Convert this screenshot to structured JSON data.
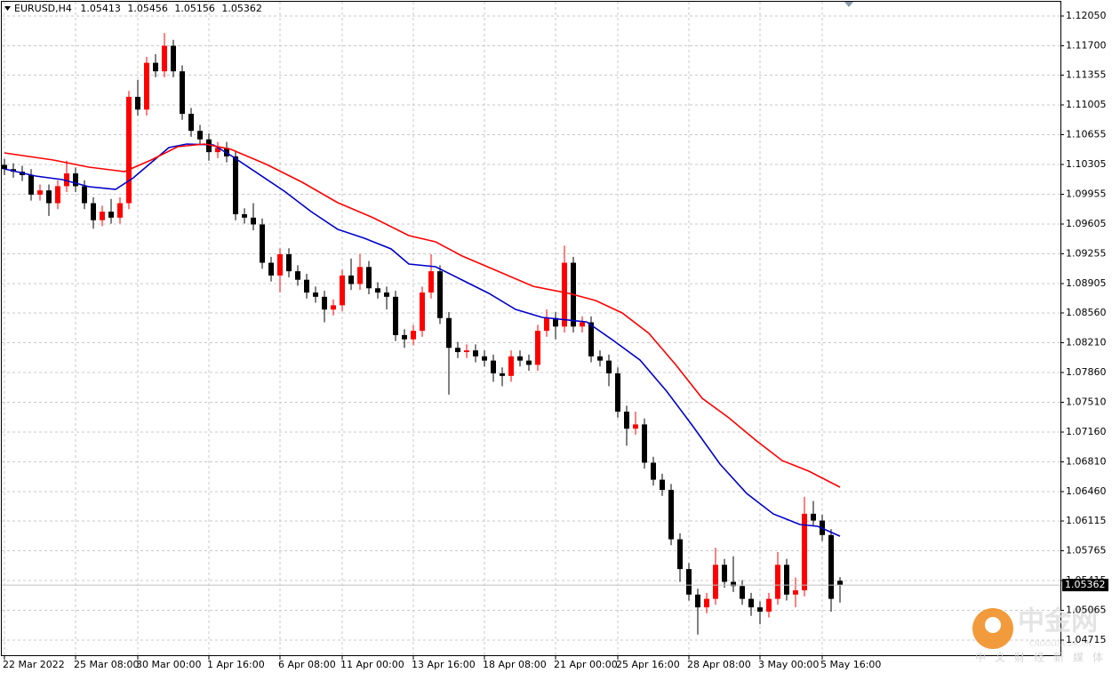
{
  "chart_data": {
    "type": "candlestick",
    "symbol": "EURUSD,H4",
    "categories": [
      "22 Mar 2022",
      null,
      null,
      null,
      null,
      null,
      null,
      null,
      "25 Mar 08:00",
      null,
      null,
      null,
      null,
      null,
      null,
      "30 Mar 00:00",
      null,
      null,
      null,
      null,
      null,
      null,
      null,
      "1 Apr 16:00",
      null,
      null,
      null,
      null,
      null,
      null,
      null,
      "6 Apr 08:00",
      null,
      null,
      null,
      null,
      null,
      null,
      "11 Apr 00:00",
      null,
      null,
      null,
      null,
      null,
      null,
      null,
      "13 Apr 16:00",
      null,
      null,
      null,
      null,
      null,
      null,
      null,
      "18 Apr 08:00",
      null,
      null,
      null,
      null,
      null,
      null,
      null,
      "21 Apr 00:00",
      null,
      null,
      null,
      null,
      null,
      null,
      "25 Apr 16:00",
      null,
      null,
      null,
      null,
      null,
      null,
      null,
      "28 Apr 08:00",
      null,
      null,
      null,
      null,
      null,
      null,
      null,
      "3 May 00:00",
      null,
      null,
      null,
      null,
      null,
      null,
      "5 May 16:00",
      null,
      null
    ],
    "open": [
      1.103,
      1.1025,
      1.1022,
      1.1018,
      1.0995,
      1.1,
      1.0985,
      1.1005,
      1.102,
      1.1005,
      1.0985,
      1.0965,
      1.0975,
      1.0968,
      1.0985,
      1.111,
      1.1095,
      1.115,
      1.114,
      1.117,
      1.114,
      1.109,
      1.107,
      1.106,
      1.1045,
      1.105,
      1.104,
      1.0972,
      1.0968,
      1.096,
      1.0915,
      1.09,
      1.0925,
      1.0905,
      1.0895,
      1.088,
      1.0875,
      1.086,
      1.0865,
      1.09,
      1.089,
      1.091,
      1.0885,
      1.088,
      1.0875,
      1.083,
      1.0825,
      1.0835,
      1.088,
      1.0905,
      1.085,
      1.0815,
      1.081,
      1.0812,
      1.0805,
      1.08,
      1.0785,
      1.0782,
      1.0805,
      1.08,
      1.0795,
      1.0835,
      1.085,
      1.084,
      1.0915,
      1.084,
      1.0845,
      1.0805,
      1.08,
      1.0785,
      1.074,
      1.072,
      1.0725,
      1.068,
      1.066,
      1.0648,
      1.059,
      1.0555,
      1.0525,
      1.051,
      1.052,
      1.056,
      1.054,
      1.0535,
      1.052,
      1.051,
      1.0505,
      1.052,
      1.056,
      1.0525,
      1.053,
      1.062,
      1.0612,
      1.0595,
      1.05413
    ],
    "high": [
      1.1037,
      1.1032,
      1.1029,
      1.1025,
      1.1007,
      1.1007,
      1.1012,
      1.1035,
      1.1027,
      1.1012,
      1.0992,
      1.0982,
      1.099,
      1.0992,
      1.1117,
      1.113,
      1.1157,
      1.116,
      1.1185,
      1.1177,
      1.1147,
      1.1097,
      1.1077,
      1.1067,
      1.1057,
      1.1057,
      1.1047,
      1.0979,
      1.0985,
      1.0967,
      1.0922,
      1.0932,
      1.0932,
      1.0912,
      1.0902,
      1.0887,
      1.0882,
      1.0872,
      1.0907,
      1.092,
      1.0925,
      1.0917,
      1.0892,
      1.0887,
      1.0882,
      1.0837,
      1.0842,
      1.0887,
      1.0925,
      1.0912,
      1.0857,
      1.0822,
      1.0819,
      1.0819,
      1.0812,
      1.0807,
      1.0792,
      1.0812,
      1.0812,
      1.0807,
      1.0842,
      1.086,
      1.0857,
      1.0935,
      1.0922,
      1.0852,
      1.0852,
      1.0812,
      1.0807,
      1.0792,
      1.0747,
      1.074,
      1.0732,
      1.0687,
      1.0667,
      1.0655,
      1.0597,
      1.0562,
      1.0532,
      1.0527,
      1.058,
      1.0567,
      1.057,
      1.0542,
      1.0527,
      1.0517,
      1.0527,
      1.0575,
      1.0567,
      1.0545,
      1.064,
      1.0635,
      1.0619,
      1.0602,
      1.05456
    ],
    "low": [
      1.1018,
      1.1015,
      1.1011,
      1.0988,
      1.0988,
      1.097,
      1.0978,
      1.0998,
      1.0998,
      1.0978,
      1.0955,
      1.0958,
      1.0961,
      1.0961,
      1.0978,
      1.1088,
      1.1088,
      1.1133,
      1.1133,
      1.1133,
      1.1083,
      1.1063,
      1.1053,
      1.1035,
      1.1038,
      1.1033,
      1.0965,
      1.0961,
      1.0953,
      1.0908,
      1.0893,
      1.088,
      1.0898,
      1.0888,
      1.0873,
      1.0868,
      1.0845,
      1.0853,
      1.0858,
      1.0883,
      1.0883,
      1.0878,
      1.0873,
      1.086,
      1.0823,
      1.0815,
      1.0818,
      1.0828,
      1.0873,
      1.0843,
      1.076,
      1.0803,
      1.0803,
      1.0798,
      1.0793,
      1.0775,
      1.077,
      1.0775,
      1.0793,
      1.0788,
      1.0788,
      1.0828,
      1.0825,
      1.0833,
      1.0833,
      1.0833,
      1.0798,
      1.0793,
      1.077,
      1.0733,
      1.07,
      1.0713,
      1.0673,
      1.0653,
      1.0641,
      1.0583,
      1.054,
      1.0518,
      1.0478,
      1.0503,
      1.0513,
      1.0533,
      1.0528,
      1.0513,
      1.05,
      1.049,
      1.0498,
      1.0513,
      1.0518,
      1.051,
      1.0523,
      1.0605,
      1.0588,
      1.0505,
      1.05156
    ],
    "close": [
      1.1025,
      1.1022,
      1.1018,
      1.0995,
      1.1,
      1.0985,
      1.1005,
      1.102,
      1.1005,
      1.0985,
      1.0965,
      1.0975,
      1.0968,
      1.0985,
      1.111,
      1.1095,
      1.115,
      1.114,
      1.117,
      1.114,
      1.109,
      1.107,
      1.106,
      1.1045,
      1.105,
      1.104,
      1.0972,
      1.0968,
      1.096,
      1.0915,
      1.09,
      1.0925,
      1.0905,
      1.0895,
      1.088,
      1.0875,
      1.086,
      1.0865,
      1.09,
      1.089,
      1.091,
      1.0885,
      1.088,
      1.0875,
      1.083,
      1.0825,
      1.0835,
      1.088,
      1.0905,
      1.085,
      1.0815,
      1.081,
      1.0812,
      1.0805,
      1.08,
      1.0785,
      1.0782,
      1.0805,
      1.08,
      1.0795,
      1.0835,
      1.085,
      1.084,
      1.0915,
      1.084,
      1.0845,
      1.0805,
      1.08,
      1.0785,
      1.074,
      1.072,
      1.0725,
      1.068,
      1.066,
      1.0648,
      1.059,
      1.0555,
      1.0525,
      1.051,
      1.052,
      1.056,
      1.054,
      1.0535,
      1.052,
      1.051,
      1.0505,
      1.052,
      1.056,
      1.0525,
      1.053,
      1.062,
      1.0612,
      1.0595,
      1.052,
      1.05362
    ],
    "up_color": "#ff0000",
    "down_color": "#000000",
    "series": [
      {
        "color": "#0000cc",
        "x": [
          0,
          3.5,
          6.5,
          9.5,
          12.5,
          14.5,
          16.5,
          18.5,
          20.5,
          23.5,
          25.5,
          28.5,
          31.5,
          34.5,
          37.5,
          40.5,
          43.5,
          45.5,
          48.5,
          51.5,
          54.5,
          57.5,
          60.5,
          63.5,
          65.5,
          68.5,
          71.5,
          74.5,
          77.5,
          80.5,
          83.5,
          86.5,
          89.5,
          91.5,
          94
        ],
        "values": [
          1.10253,
          1.10169,
          1.10127,
          1.10044,
          1.10012,
          1.10148,
          1.10326,
          1.10504,
          1.10545,
          1.10535,
          1.10409,
          1.102,
          1.09991,
          1.09751,
          1.09542,
          1.09438,
          1.09312,
          1.09135,
          1.09103,
          1.08947,
          1.0879,
          1.08602,
          1.08508,
          1.08476,
          1.08455,
          1.08236,
          1.08006,
          1.0764,
          1.07222,
          1.06784,
          1.06439,
          1.06198,
          1.06073,
          1.06052,
          1.05937
        ]
      },
      {
        "color": "#ff0000",
        "x": [
          0,
          5.5,
          9.5,
          13.5,
          16.5,
          19.5,
          22.5,
          25.5,
          29.5,
          33.5,
          37.5,
          41.5,
          45.5,
          48.5,
          51.5,
          55.5,
          59.5,
          63.5,
          66.5,
          69.5,
          72.5,
          75.5,
          78.5,
          81.5,
          84.5,
          87.5,
          90.5,
          94
        ],
        "values": [
          1.10441,
          1.10357,
          1.10274,
          1.10221,
          1.10357,
          1.10514,
          1.10545,
          1.10483,
          1.10305,
          1.10096,
          1.09856,
          1.09678,
          1.09469,
          1.09396,
          1.09229,
          1.09051,
          1.08873,
          1.0879,
          1.08706,
          1.0856,
          1.0832,
          1.07954,
          1.07557,
          1.07327,
          1.07066,
          1.06825,
          1.067,
          1.06512
        ]
      }
    ],
    "ylim": [
      1.04527,
      1.12238
    ],
    "yticks": [
      {
        "value": 1.1205,
        "label": "1.12050"
      },
      {
        "value": 1.117,
        "label": "1.11700"
      },
      {
        "value": 1.11355,
        "label": "1.11355"
      },
      {
        "value": 1.11005,
        "label": "1.11005"
      },
      {
        "value": 1.10655,
        "label": "1.10655"
      },
      {
        "value": 1.10305,
        "label": "1.10305"
      },
      {
        "value": 1.09955,
        "label": "1.09955"
      },
      {
        "value": 1.09605,
        "label": "1.09605"
      },
      {
        "value": 1.09255,
        "label": "1.09255"
      },
      {
        "value": 1.08905,
        "label": "1.08905"
      },
      {
        "value": 1.0856,
        "label": "1.08560"
      },
      {
        "value": 1.0821,
        "label": "1.08210"
      },
      {
        "value": 1.0786,
        "label": "1.07860"
      },
      {
        "value": 1.0751,
        "label": "1.07510"
      },
      {
        "value": 1.0716,
        "label": "1.07160"
      },
      {
        "value": 1.0681,
        "label": "1.06810"
      },
      {
        "value": 1.0646,
        "label": "1.06460"
      },
      {
        "value": 1.06115,
        "label": "1.06115"
      },
      {
        "value": 1.05765,
        "label": "1.05765"
      },
      {
        "value": 1.05415,
        "label": "1.05415"
      },
      {
        "value": 1.05065,
        "label": "1.05065"
      },
      {
        "value": 1.04715,
        "label": "1.04715"
      }
    ],
    "grid": true,
    "watermark": {
      "logo": "中金网",
      "site": "CNGOLD.COM.CN",
      "slogan": "中文财经新媒体"
    }
  }
}
